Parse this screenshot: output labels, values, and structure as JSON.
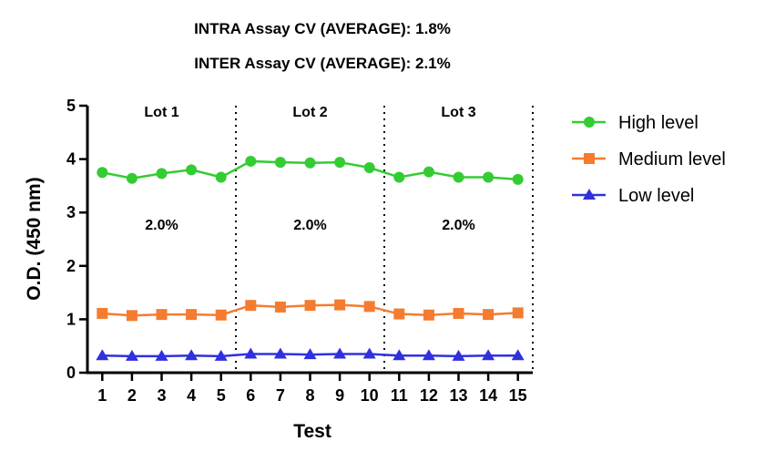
{
  "header": {
    "intra": "INTRA Assay CV (AVERAGE): 1.8%",
    "inter": "INTER Assay CV (AVERAGE): 2.1%"
  },
  "chart_data": {
    "type": "line",
    "xlabel": "Test",
    "ylabel": "O.D. (450 nm)",
    "ylim": [
      0,
      5
    ],
    "y_ticks": [
      0,
      1,
      2,
      3,
      4,
      5
    ],
    "x": [
      1,
      2,
      3,
      4,
      5,
      6,
      7,
      8,
      9,
      10,
      11,
      12,
      13,
      14,
      15
    ],
    "xlim": [
      0.5,
      15.5
    ],
    "lot_dividers": [
      5.5,
      10.5,
      15.5
    ],
    "lots": [
      {
        "label": "Lot 1",
        "center": 3,
        "cv": "2.0%"
      },
      {
        "label": "Lot 2",
        "center": 8,
        "cv": "2.0%"
      },
      {
        "label": "Lot 3",
        "center": 13,
        "cv": "2.0%"
      }
    ],
    "legend_position": "right",
    "series": [
      {
        "name": "High level",
        "color": "#33cc33",
        "marker": "circle",
        "values": [
          3.75,
          3.64,
          3.73,
          3.8,
          3.66,
          3.96,
          3.94,
          3.93,
          3.94,
          3.84,
          3.66,
          3.76,
          3.66,
          3.66,
          3.62
        ]
      },
      {
        "name": "Medium level",
        "color": "#f47c30",
        "marker": "square",
        "values": [
          1.11,
          1.07,
          1.09,
          1.09,
          1.08,
          1.26,
          1.23,
          1.26,
          1.27,
          1.24,
          1.1,
          1.08,
          1.11,
          1.09,
          1.12
        ]
      },
      {
        "name": "Low level",
        "color": "#3030e0",
        "marker": "triangle",
        "values": [
          0.32,
          0.31,
          0.31,
          0.32,
          0.31,
          0.35,
          0.35,
          0.34,
          0.35,
          0.35,
          0.32,
          0.32,
          0.31,
          0.32,
          0.32
        ]
      }
    ]
  }
}
